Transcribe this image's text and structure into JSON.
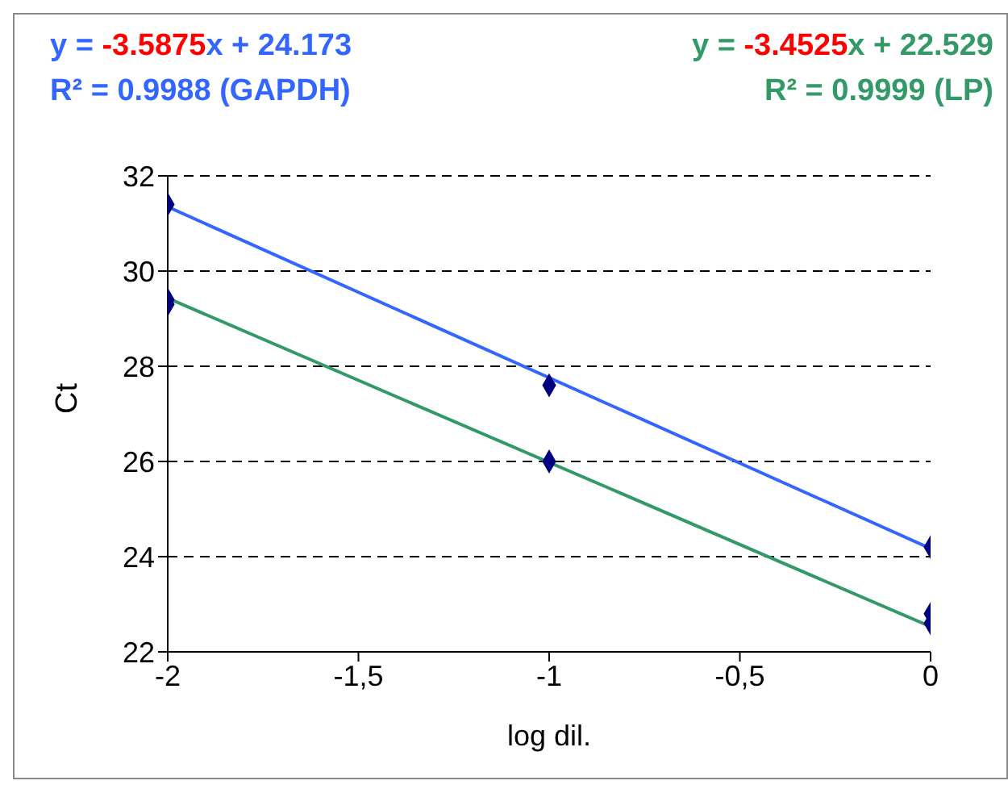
{
  "chart_data": {
    "type": "scatter",
    "xlabel": "log dil.",
    "ylabel": "Ct",
    "annotations": [
      "y = -3.5875x + 24.173",
      "R² = 0.9988 (GAPDH)",
      "y = -3.4525x + 22.529",
      "R² = 0.9999 (LP)"
    ],
    "series": [
      {
        "color": "#000080",
        "marker": "diamond",
        "x": [
          -2,
          -2,
          -2,
          -1,
          -1,
          0,
          0,
          0
        ],
        "values": [
          31.4,
          29.4,
          29.3,
          27.6,
          26.0,
          24.2,
          22.8,
          22.6
        ]
      },
      {
        "type": "line",
        "color": "#3366ff",
        "marker": "none",
        "line_style": "solid",
        "x": [
          -2,
          0
        ],
        "values": [
          31.35,
          24.17
        ]
      },
      {
        "type": "line",
        "color": "#339966",
        "marker": "none",
        "line_style": "solid",
        "x": [
          -2,
          0
        ],
        "values": [
          29.43,
          22.53
        ]
      }
    ],
    "xlim": [
      -2,
      0
    ],
    "xticks": [
      -2,
      {
        "value": -1.5,
        "label": "-1,5"
      },
      -1,
      {
        "value": -0.5,
        "label": "-0,5"
      },
      0
    ],
    "ylim": [
      22,
      32
    ],
    "yticks": [
      22,
      24,
      26,
      28,
      30,
      32
    ],
    "grid": "y"
  }
}
